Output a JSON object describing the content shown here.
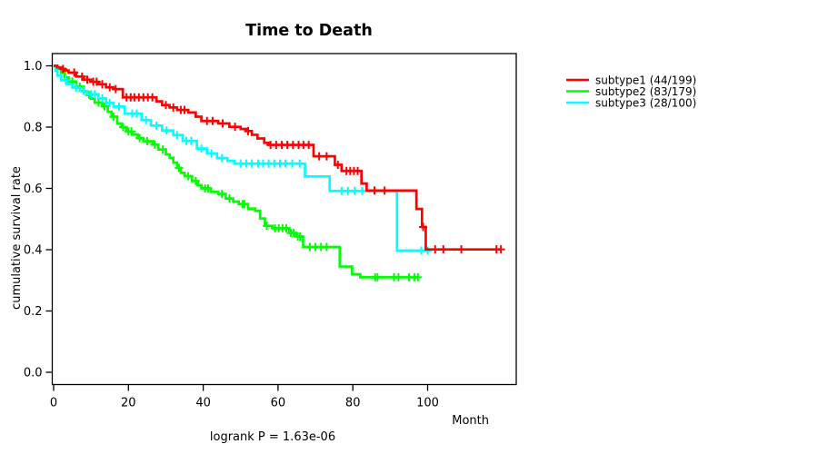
{
  "chart_data": {
    "type": "line",
    "variant": "kaplan-meier-step",
    "title": "Time to Death",
    "xlabel": "Month",
    "ylabel": "cumulative survival rate",
    "footnote": "logrank P = 1.63e-06",
    "x_ticks": [
      0,
      20,
      40,
      60,
      80,
      100
    ],
    "y_ticks": [
      0.0,
      0.2,
      0.4,
      0.6,
      0.8,
      1.0
    ],
    "xlim": [
      0,
      124
    ],
    "ylim": [
      0,
      1
    ],
    "grid": false,
    "legend_position": "right-outside",
    "axis_color": "#000000",
    "background_color": "#ffffff",
    "series": [
      {
        "name": "subtype1 (44/199)",
        "color": "#ff0000",
        "end": 119.8,
        "steps": [
          [
            0,
            1
          ],
          [
            1,
            0.995
          ],
          [
            2,
            0.99
          ],
          [
            3,
            0.985
          ],
          [
            4,
            0.978
          ],
          [
            6,
            0.965
          ],
          [
            8,
            0.955
          ],
          [
            10,
            0.948
          ],
          [
            12,
            0.94
          ],
          [
            14,
            0.93
          ],
          [
            16,
            0.924
          ],
          [
            18.5,
            0.897
          ],
          [
            27.5,
            0.884
          ],
          [
            29,
            0.872
          ],
          [
            31,
            0.864
          ],
          [
            33,
            0.856
          ],
          [
            36,
            0.848
          ],
          [
            38,
            0.834
          ],
          [
            39.5,
            0.82
          ],
          [
            44,
            0.812
          ],
          [
            47,
            0.801
          ],
          [
            50,
            0.794
          ],
          [
            51.5,
            0.787
          ],
          [
            53,
            0.775
          ],
          [
            54.5,
            0.763
          ],
          [
            56.3,
            0.749
          ],
          [
            57.5,
            0.742
          ],
          [
            69.5,
            0.705
          ],
          [
            75.2,
            0.677
          ],
          [
            77,
            0.657
          ],
          [
            82.3,
            0.616
          ],
          [
            83.7,
            0.593
          ],
          [
            97,
            0.533
          ],
          [
            98.5,
            0.474
          ],
          [
            99.5,
            0.401
          ]
        ],
        "censors": [
          2.5,
          5.5,
          7.6,
          9,
          10.6,
          11.5,
          13,
          15,
          16.6,
          19.5,
          20.6,
          21.6,
          22.8,
          24,
          25.2,
          26.4,
          30,
          32,
          34,
          35,
          41,
          42.5,
          45.2,
          48.5,
          52,
          58,
          59.5,
          61,
          62.5,
          64,
          65.5,
          66.8,
          68.2,
          71,
          73,
          76,
          78.3,
          79.3,
          80.3,
          81.3,
          85.8,
          88.5,
          98.8,
          102,
          104.2,
          109,
          118.4,
          119.6
        ]
      },
      {
        "name": "subtype2 (83/179)",
        "color": "#00ff00",
        "end": 97.6,
        "steps": [
          [
            0,
            1
          ],
          [
            1,
            0.99
          ],
          [
            2,
            0.977
          ],
          [
            3,
            0.962
          ],
          [
            4,
            0.949
          ],
          [
            6,
            0.932
          ],
          [
            8,
            0.916
          ],
          [
            9,
            0.905
          ],
          [
            10,
            0.893
          ],
          [
            11,
            0.88
          ],
          [
            13,
            0.868
          ],
          [
            14.5,
            0.85
          ],
          [
            15.5,
            0.834
          ],
          [
            17,
            0.812
          ],
          [
            18.2,
            0.8
          ],
          [
            19.5,
            0.786
          ],
          [
            21,
            0.776
          ],
          [
            22.5,
            0.764
          ],
          [
            24,
            0.754
          ],
          [
            26.5,
            0.743
          ],
          [
            28,
            0.727
          ],
          [
            30,
            0.711
          ],
          [
            31,
            0.7
          ],
          [
            32,
            0.684
          ],
          [
            33,
            0.667
          ],
          [
            34,
            0.651
          ],
          [
            35,
            0.64
          ],
          [
            37,
            0.624
          ],
          [
            38.5,
            0.611
          ],
          [
            39.5,
            0.6
          ],
          [
            42,
            0.589
          ],
          [
            44,
            0.582
          ],
          [
            46,
            0.567
          ],
          [
            48,
            0.557
          ],
          [
            49.5,
            0.549
          ],
          [
            52,
            0.534
          ],
          [
            53.9,
            0.527
          ],
          [
            55.2,
            0.502
          ],
          [
            56.5,
            0.478
          ],
          [
            58.5,
            0.47
          ],
          [
            63,
            0.455
          ],
          [
            64.8,
            0.443
          ],
          [
            66.7,
            0.409
          ],
          [
            76.5,
            0.345
          ],
          [
            79.8,
            0.32
          ],
          [
            82,
            0.31
          ]
        ],
        "censors": [
          5,
          7,
          9.5,
          12,
          13.6,
          16,
          18.6,
          20,
          20.8,
          23,
          25,
          27,
          29.2,
          33.5,
          36,
          38,
          40.5,
          41.3,
          45,
          47,
          50.5,
          51,
          57,
          59.2,
          60.2,
          61.2,
          62.2,
          63.4,
          64.2,
          65.3,
          65.9,
          68.5,
          70,
          71.5,
          73,
          86,
          86.6,
          91,
          92.2,
          95,
          96.5,
          97.4
        ]
      },
      {
        "name": "subtype3 (28/100)",
        "color": "#00ffff",
        "end": 100.5,
        "steps": [
          [
            0,
            1
          ],
          [
            0.5,
            0.985
          ],
          [
            1,
            0.968
          ],
          [
            2,
            0.953
          ],
          [
            3.5,
            0.94
          ],
          [
            5,
            0.929
          ],
          [
            7,
            0.918
          ],
          [
            9,
            0.907
          ],
          [
            12,
            0.894
          ],
          [
            14,
            0.879
          ],
          [
            16,
            0.867
          ],
          [
            19,
            0.844
          ],
          [
            23.5,
            0.823
          ],
          [
            26,
            0.805
          ],
          [
            29,
            0.789
          ],
          [
            32,
            0.774
          ],
          [
            34.5,
            0.755
          ],
          [
            38.3,
            0.73
          ],
          [
            41,
            0.714
          ],
          [
            43.7,
            0.699
          ],
          [
            46.5,
            0.69
          ],
          [
            48.3,
            0.681
          ],
          [
            67.2,
            0.639
          ],
          [
            73.8,
            0.592
          ],
          [
            91.8,
            0.397
          ]
        ],
        "censors": [
          3.2,
          6,
          8,
          10,
          11,
          13,
          15,
          17.5,
          21,
          22.2,
          24.7,
          27.5,
          30.2,
          33,
          35.5,
          36.8,
          39.5,
          42.2,
          45,
          50,
          51.5,
          53,
          54.7,
          56,
          57.5,
          59,
          60.5,
          62,
          63.8,
          65.8,
          77,
          78.7,
          80.5,
          82.5,
          98.3,
          100
        ]
      }
    ]
  }
}
